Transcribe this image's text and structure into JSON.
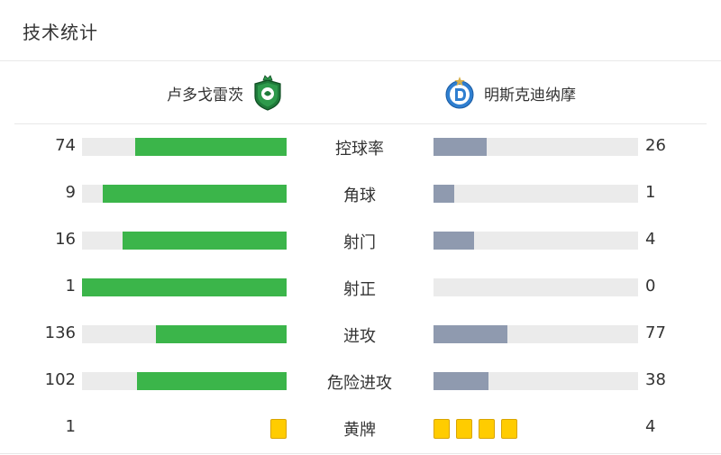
{
  "header": {
    "title": "技术统计"
  },
  "teams": {
    "home": {
      "name": "卢多戈雷茨",
      "logo_icon": "ludogorets-crest-icon",
      "color": "#3bb54a"
    },
    "away": {
      "name": "明斯克迪纳摩",
      "logo_icon": "dinamo-minsk-crest-icon",
      "color": "#8f9aaf"
    }
  },
  "stats": [
    {
      "label": "控球率",
      "home": "74",
      "away": "26",
      "home_share": 0.74,
      "away_share": 0.26
    },
    {
      "label": "角球",
      "home": "9",
      "away": "1",
      "home_share": 0.9,
      "away_share": 0.1
    },
    {
      "label": "射门",
      "home": "16",
      "away": "4",
      "home_share": 0.8,
      "away_share": 0.2
    },
    {
      "label": "射正",
      "home": "1",
      "away": "0",
      "home_share": 1.0,
      "away_share": 0.0
    },
    {
      "label": "进攻",
      "home": "136",
      "away": "77",
      "home_share": 0.64,
      "away_share": 0.36
    },
    {
      "label": "危险进攻",
      "home": "102",
      "away": "38",
      "home_share": 0.73,
      "away_share": 0.27
    }
  ],
  "cards": {
    "label": "黄牌",
    "home": "1",
    "away": "4",
    "home_count": 1,
    "away_count": 4,
    "color": "#ffcc00"
  }
}
